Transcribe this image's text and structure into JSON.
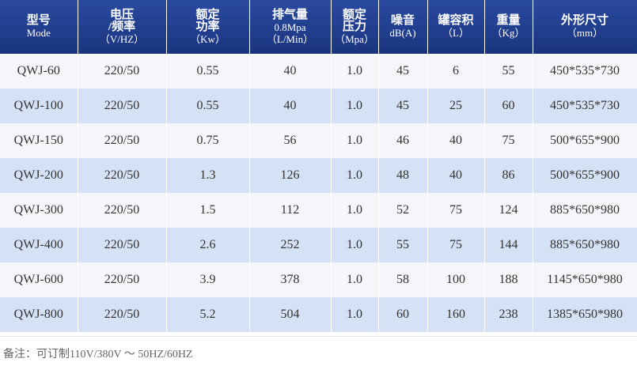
{
  "table": {
    "header": [
      [
        "型号",
        "Mode"
      ],
      [
        "电压",
        "/频率",
        "（V/HZ）"
      ],
      [
        "额定",
        "功率",
        "（Kw）"
      ],
      [
        "排气量",
        "0.8Mpa",
        "（L/Min）"
      ],
      [
        "额定",
        "压力",
        "（Mpa）"
      ],
      [
        "噪音",
        "dB(A)"
      ],
      [
        "罐容积",
        "（L）"
      ],
      [
        "重量",
        "（Kg）"
      ],
      [
        "外形尺寸",
        "（mm）"
      ]
    ],
    "rows": [
      [
        "QWJ-60",
        "220/50",
        "0.55",
        "40",
        "1.0",
        "45",
        "6",
        "55",
        "450*535*730"
      ],
      [
        "QWJ-100",
        "220/50",
        "0.55",
        "40",
        "1.0",
        "45",
        "25",
        "60",
        "450*535*730"
      ],
      [
        "QWJ-150",
        "220/50",
        "0.75",
        "56",
        "1.0",
        "46",
        "40",
        "75",
        "500*655*900"
      ],
      [
        "QWJ-200",
        "220/50",
        "1.3",
        "126",
        "1.0",
        "48",
        "40",
        "86",
        "500*655*900"
      ],
      [
        "QWJ-300",
        "220/50",
        "1.5",
        "112",
        "1.0",
        "52",
        "75",
        "124",
        "885*650*980"
      ],
      [
        "QWJ-400",
        "220/50",
        "2.6",
        "252",
        "1.0",
        "55",
        "75",
        "144",
        "885*650*980"
      ],
      [
        "QWJ-600",
        "220/50",
        "3.9",
        "378",
        "1.0",
        "58",
        "100",
        "188",
        "1145*650*980"
      ],
      [
        "QWJ-800",
        "220/50",
        "5.2",
        "504",
        "1.0",
        "60",
        "160",
        "238",
        "1385*650*980"
      ]
    ]
  },
  "note": "备注：可订制110V/380V ～ 50HZ/60HZ"
}
